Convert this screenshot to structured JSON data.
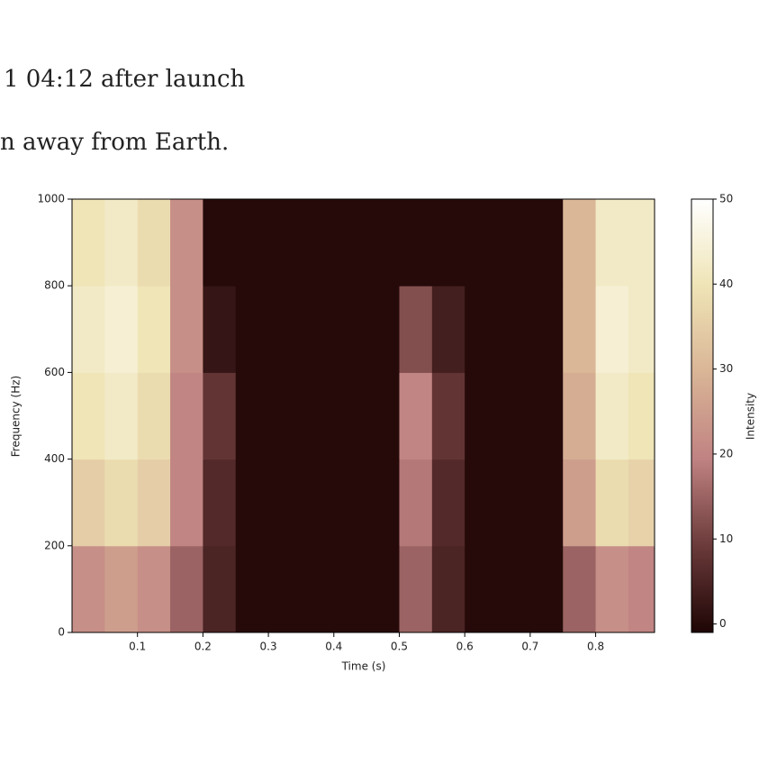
{
  "header": {
    "line1": "1 04:12 after launch",
    "line2": "n away from Earth."
  },
  "chart_data": {
    "type": "heatmap",
    "xlabel": "Time (s)",
    "ylabel": "Frequency (Hz)",
    "colorbar_label": "Intensity",
    "x_edges": [
      0,
      0.05,
      0.1,
      0.15,
      0.2,
      0.25,
      0.3,
      0.35,
      0.4,
      0.45,
      0.5,
      0.55,
      0.6,
      0.65,
      0.7,
      0.75,
      0.8,
      0.85,
      0.89
    ],
    "y_edges": [
      0,
      200,
      400,
      600,
      800,
      1000
    ],
    "values": [
      [
        22,
        25,
        22,
        15,
        5,
        0,
        0,
        0,
        0,
        0,
        15,
        5,
        0,
        0,
        0,
        15,
        22,
        20
      ],
      [
        35,
        38,
        35,
        20,
        6,
        0,
        0,
        0,
        0,
        0,
        18,
        6,
        0,
        0,
        0,
        25,
        38,
        36
      ],
      [
        40,
        42,
        38,
        20,
        8,
        0,
        0,
        0,
        0,
        0,
        20,
        8,
        0,
        0,
        0,
        28,
        42,
        40
      ],
      [
        42,
        44,
        40,
        22,
        2,
        0,
        0,
        0,
        0,
        0,
        12,
        4,
        0,
        0,
        0,
        30,
        44,
        42
      ],
      [
        40,
        42,
        38,
        22,
        0,
        0,
        0,
        0,
        0,
        0,
        0,
        0,
        0,
        0,
        0,
        30,
        42,
        42
      ]
    ],
    "xlim": [
      0,
      0.89
    ],
    "ylim": [
      0,
      1000
    ],
    "xticks": [
      0.1,
      0.2,
      0.3,
      0.4,
      0.5,
      0.6,
      0.7,
      0.8
    ],
    "yticks": [
      0,
      200,
      400,
      600,
      800,
      1000
    ],
    "clim": [
      -1,
      50
    ],
    "cticks": [
      0,
      10,
      20,
      30,
      40,
      50
    ],
    "colormap": [
      "#1e0505",
      "#6b3a3a",
      "#c08282",
      "#d9b596",
      "#efe4b6",
      "#ffffff"
    ]
  }
}
